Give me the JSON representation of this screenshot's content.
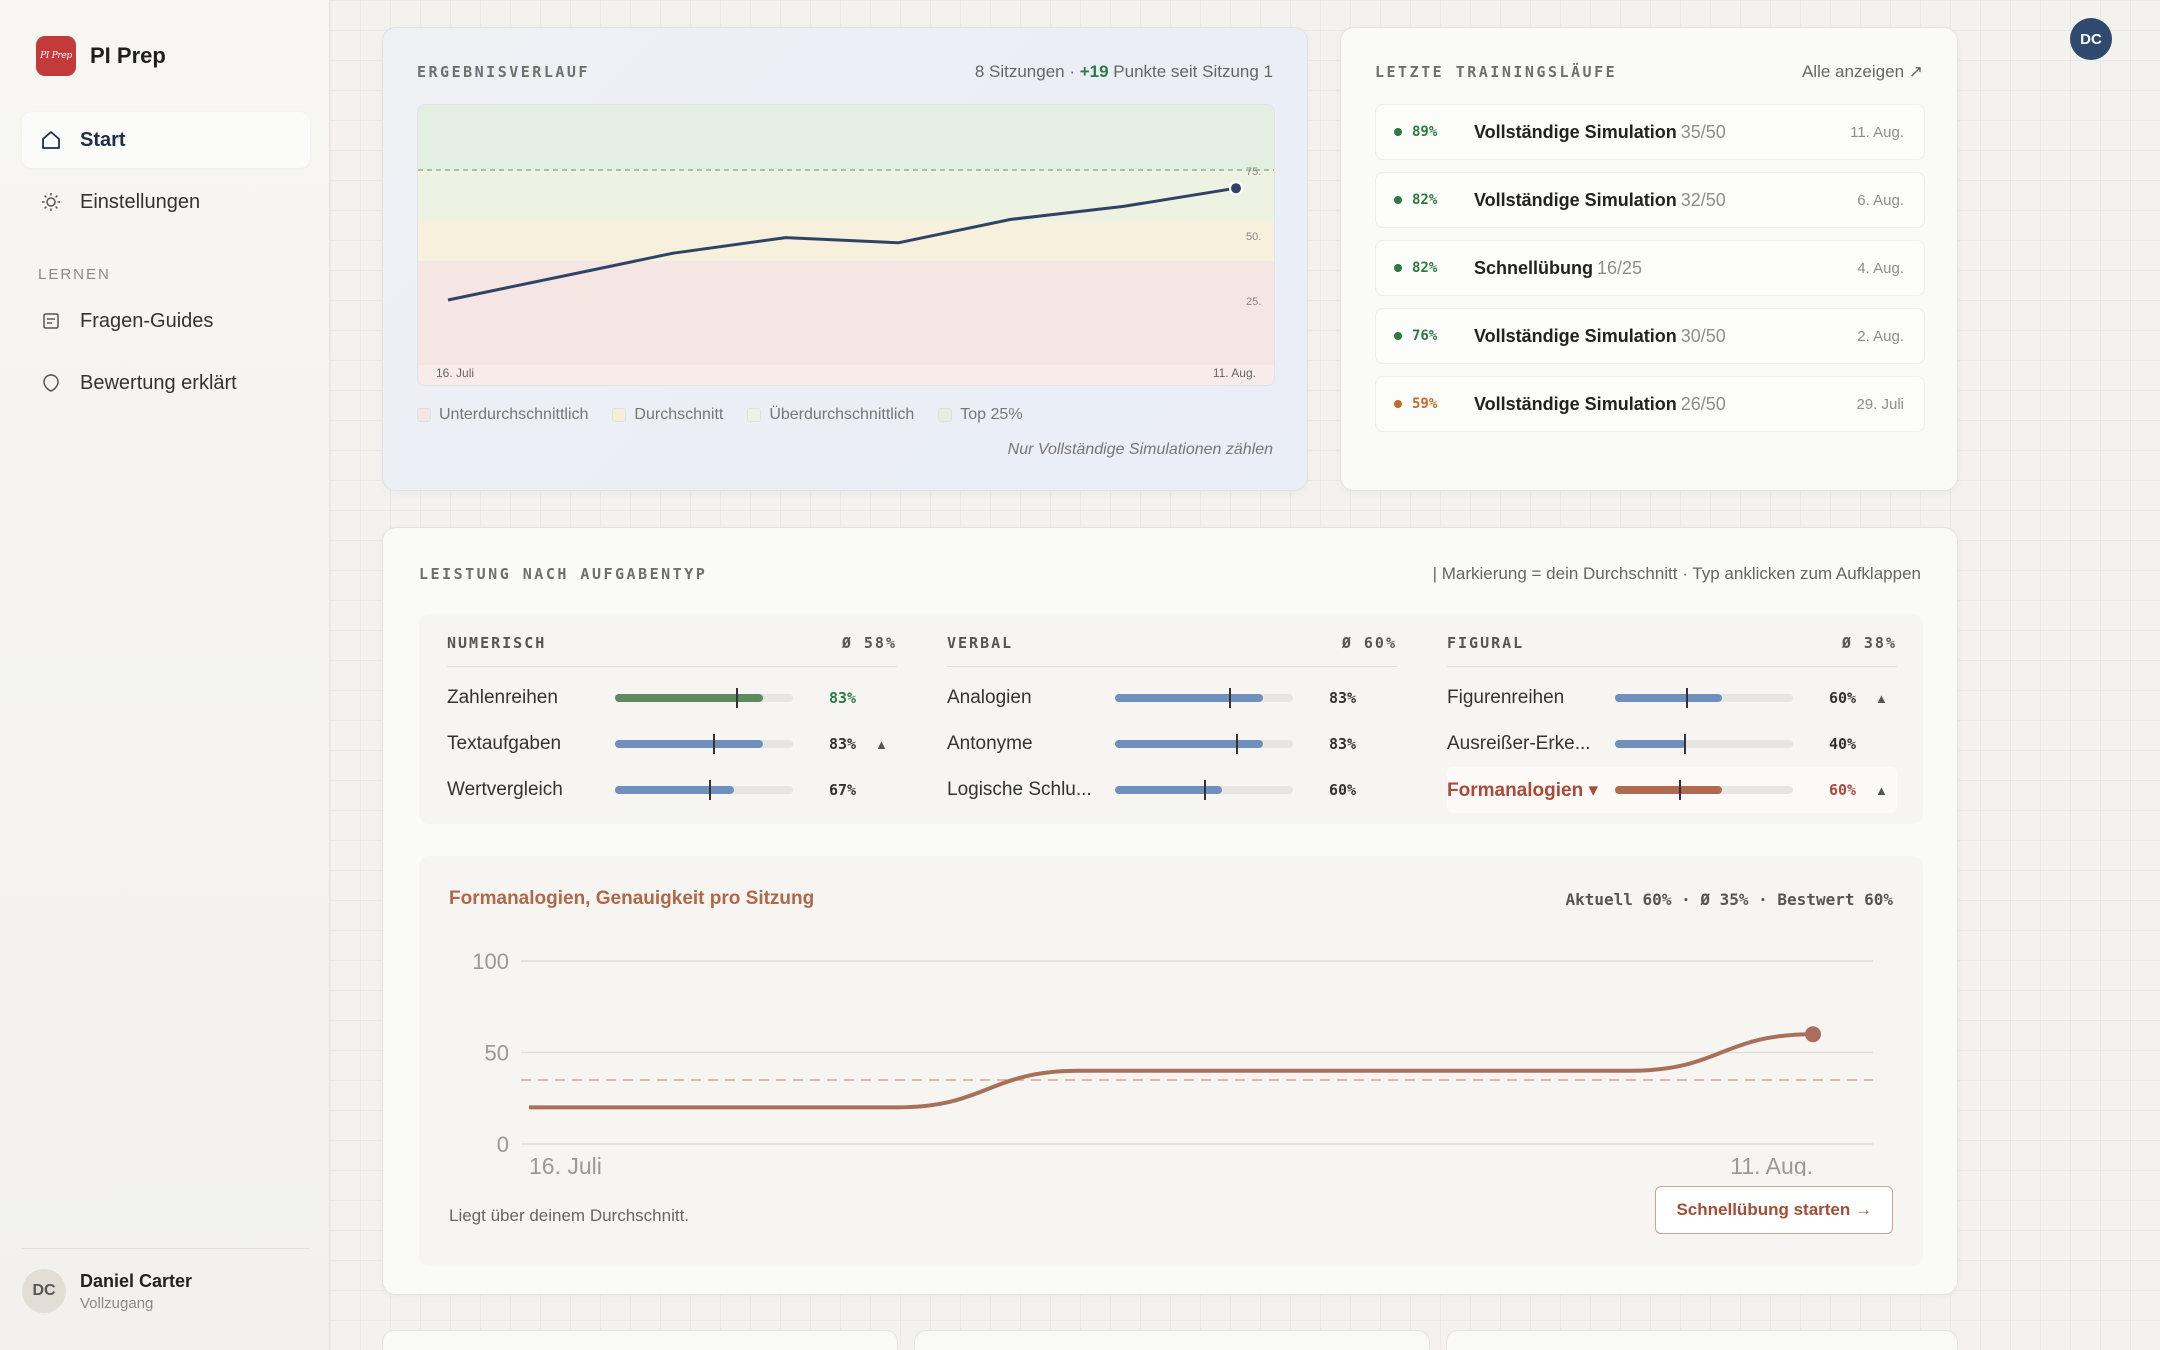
{
  "brand": {
    "logo_text": "PI Prep",
    "name": "PI Prep"
  },
  "nav": {
    "start": "Start",
    "settings": "Einstellungen",
    "section": "LERNEN",
    "guides": "Fragen-Guides",
    "scoring": "Bewertung erklärt"
  },
  "user": {
    "initials": "DC",
    "name": "Daniel Carter",
    "plan": "Vollzugang"
  },
  "results": {
    "title": "ERGEBNISVERLAUF",
    "meta_prefix": "8 Sitzungen · ",
    "meta_delta": "+19",
    "meta_suffix": " Punkte seit Sitzung 1",
    "legend": [
      "Unterdurchschnittlich",
      "Durchschnitt",
      "Überdurchschnittlich",
      "Top 25%"
    ],
    "legend_colors": [
      "#f4e6e2",
      "#f5efd8",
      "#eef2e4",
      "#e2eee0"
    ],
    "note": "Nur Vollständige Simulationen zählen"
  },
  "chart_data": [
    {
      "type": "line",
      "x": [
        "16. Juli",
        "",
        "",
        "",
        "",
        "",
        "",
        "11. Aug."
      ],
      "series": [
        {
          "values": [
            25,
            34,
            43,
            49,
            47,
            56,
            61,
            68
          ]
        }
      ],
      "xticks": [
        "16. Juli",
        "11. Aug."
      ],
      "yticks": [
        "25.",
        "50.",
        "75."
      ],
      "ylim": [
        0,
        100
      ],
      "reference_line": 75,
      "bands": [
        [
          0,
          40
        ],
        [
          40,
          55
        ],
        [
          55,
          75
        ],
        [
          75,
          100
        ]
      ],
      "line_color": "#2f4464"
    },
    {
      "type": "line",
      "title": "Formanalogien, Genauigkeit pro Sitzung",
      "x": [
        "16. Juli",
        "",
        "",
        "",
        "",
        "",
        "",
        "11. Aug."
      ],
      "series": [
        {
          "values": [
            20,
            20,
            20,
            40,
            40,
            40,
            40,
            60
          ]
        }
      ],
      "xticks": [
        "16. Juli",
        "11. Aug."
      ],
      "yticks": [
        0,
        50,
        100
      ],
      "ylim": [
        0,
        100
      ],
      "average_line": 35,
      "line_color": "#a8705a"
    }
  ],
  "runs": {
    "title": "LETZTE TRAININGSLÄUFE",
    "link": "Alle anzeigen ↗",
    "items": [
      {
        "pct": "89%",
        "name": "Vollständige Simulation",
        "count": "35/50",
        "date": "11. Aug.",
        "color": "#2d7a45"
      },
      {
        "pct": "82%",
        "name": "Vollständige Simulation",
        "count": "32/50",
        "date": "6. Aug.",
        "color": "#2d7a45"
      },
      {
        "pct": "82%",
        "name": "Schnellübung",
        "count": "16/25",
        "date": "4. Aug.",
        "color": "#2d7a45"
      },
      {
        "pct": "76%",
        "name": "Vollständige Simulation",
        "count": "30/50",
        "date": "2. Aug.",
        "color": "#2d7a45"
      },
      {
        "pct": "59%",
        "name": "Vollständige Simulation",
        "count": "26/50",
        "date": "29. Juli",
        "color": "#c46a2a"
      }
    ]
  },
  "perf": {
    "title": "LEISTUNG NACH AUFGABENTYP",
    "hint": "| Markierung = dein Durchschnitt · Typ anklicken zum Aufklappen",
    "columns": [
      {
        "name": "NUMERISCH",
        "avg": "Ø 58%",
        "rows": [
          {
            "label": "Zahlenreihen",
            "value": "83%",
            "fill": 0.83,
            "mark": 0.68,
            "trend": "",
            "color": "#5f8a5f",
            "val_color": "#2d7a45"
          },
          {
            "label": "Textaufgaben",
            "value": "83%",
            "fill": 0.83,
            "mark": 0.55,
            "trend": "▲",
            "color": "#6f8fbd",
            "val_color": "#333"
          },
          {
            "label": "Wertvergleich",
            "value": "67%",
            "fill": 0.67,
            "mark": 0.53,
            "trend": "",
            "color": "#6f8fbd",
            "val_color": "#333"
          }
        ]
      },
      {
        "name": "VERBAL",
        "avg": "Ø 60%",
        "rows": [
          {
            "label": "Analogien",
            "value": "83%",
            "fill": 0.83,
            "mark": 0.64,
            "trend": "",
            "color": "#6f8fbd",
            "val_color": "#333"
          },
          {
            "label": "Antonyme",
            "value": "83%",
            "fill": 0.83,
            "mark": 0.68,
            "trend": "",
            "color": "#6f8fbd",
            "val_color": "#333"
          },
          {
            "label": "Logische Schlu...",
            "value": "60%",
            "fill": 0.6,
            "mark": 0.5,
            "trend": "",
            "color": "#6f8fbd",
            "val_color": "#333"
          }
        ]
      },
      {
        "name": "FIGURAL",
        "avg": "Ø 38%",
        "rows": [
          {
            "label": "Figurenreihen",
            "value": "60%",
            "fill": 0.6,
            "mark": 0.4,
            "trend": "▲",
            "color": "#6f8fbd",
            "val_color": "#333"
          },
          {
            "label": "Ausreißer-Erke...",
            "value": "40%",
            "fill": 0.4,
            "mark": 0.39,
            "trend": "",
            "color": "#6f8fbd",
            "val_color": "#333"
          },
          {
            "label": "Formanalogien ▾",
            "value": "60%",
            "fill": 0.6,
            "mark": 0.36,
            "trend": "▲",
            "color": "#b06a50",
            "val_color": "#a94a3a",
            "highlight": true
          }
        ]
      }
    ],
    "detail": {
      "title": "Formanalogien, Genauigkeit pro Sitzung",
      "stats": "Aktuell 60% · Ø 35% · Bestwert 60%",
      "note": "Liegt über deinem Durchschnitt.",
      "cta": "Schnellübung starten →"
    }
  }
}
